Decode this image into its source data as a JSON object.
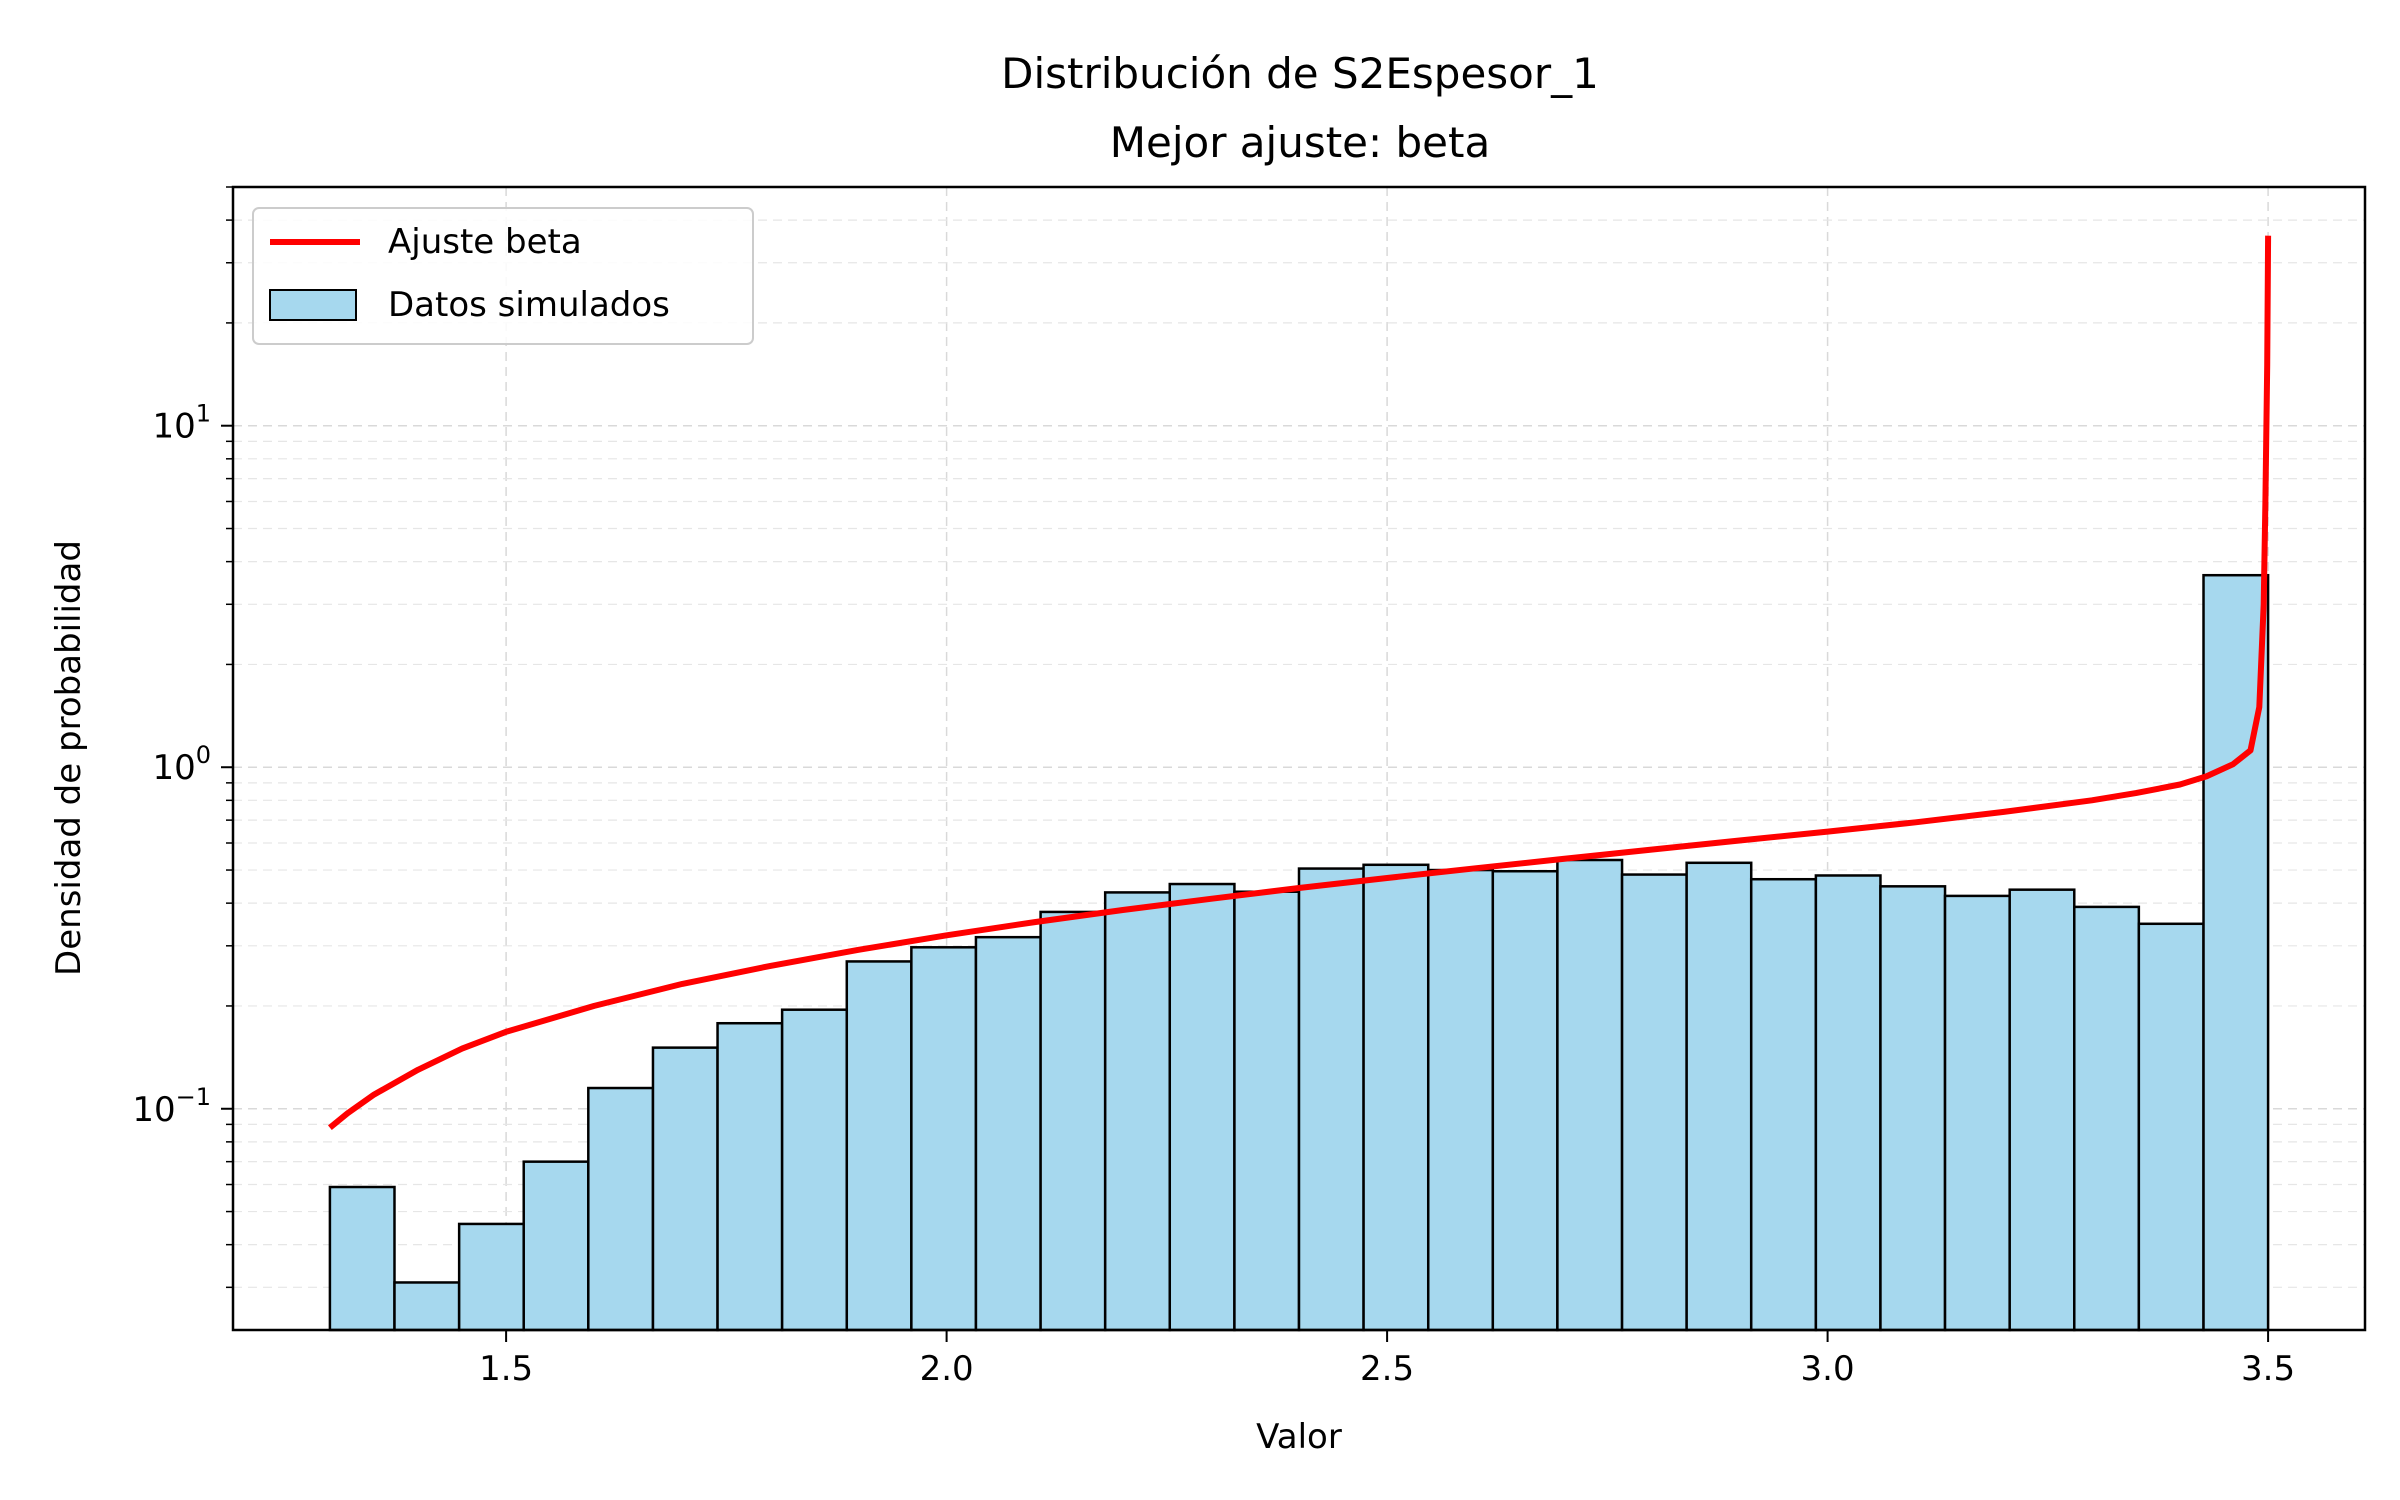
{
  "chart_data": {
    "type": "bar",
    "title": "Distribución de S2Espesor_1",
    "subtitle": "Mejor ajuste: beta",
    "xlabel": "Valor",
    "ylabel": "Densidad de probabilidad",
    "xlim": [
      1.19,
      3.61
    ],
    "ylim": [
      0.0225,
      50
    ],
    "yscale": "log",
    "grid": true,
    "legend_position": "upper-left",
    "x_ticks": [
      1.5,
      2.0,
      2.5,
      3.0,
      3.5
    ],
    "x_tick_labels": [
      "1.5",
      "2.0",
      "2.5",
      "3.0",
      "3.5"
    ],
    "y_ticks": [
      0.1,
      1,
      10
    ],
    "y_tick_labels": [
      {
        "base": "10",
        "exp": "−1"
      },
      {
        "base": "10",
        "exp": "0"
      },
      {
        "base": "10",
        "exp": "1"
      }
    ],
    "histogram": {
      "name": "Datos simulados",
      "color": "#a6d8ee",
      "edge_color": "#000000",
      "bin_edges": [
        1.3,
        1.3733,
        1.4467,
        1.52,
        1.5933,
        1.6667,
        1.74,
        1.8133,
        1.8867,
        1.96,
        2.0333,
        2.1067,
        2.18,
        2.2533,
        2.3267,
        2.4,
        2.4733,
        2.5467,
        2.62,
        2.6933,
        2.7667,
        2.84,
        2.9133,
        2.9867,
        3.06,
        3.1333,
        3.2067,
        3.28,
        3.3533,
        3.4267,
        3.5
      ],
      "values": [
        0.059,
        0.031,
        0.046,
        0.07,
        0.115,
        0.151,
        0.178,
        0.195,
        0.27,
        0.297,
        0.318,
        0.377,
        0.43,
        0.455,
        0.432,
        0.505,
        0.518,
        0.5,
        0.496,
        0.535,
        0.485,
        0.525,
        0.47,
        0.482,
        0.448,
        0.42,
        0.438,
        0.39,
        0.348,
        3.65
      ]
    },
    "fit_line": {
      "name": "Ajuste beta",
      "color": "#ff0000",
      "x": [
        1.3,
        1.32,
        1.35,
        1.4,
        1.45,
        1.5,
        1.6,
        1.7,
        1.8,
        1.9,
        2.0,
        2.1,
        2.2,
        2.3,
        2.4,
        2.5,
        2.6,
        2.7,
        2.8,
        2.9,
        3.0,
        3.1,
        3.2,
        3.3,
        3.35,
        3.4,
        3.43,
        3.46,
        3.48,
        3.49,
        3.495,
        3.497,
        3.499,
        3.5
      ],
      "y": [
        0.088,
        0.097,
        0.11,
        0.13,
        0.15,
        0.168,
        0.2,
        0.232,
        0.262,
        0.292,
        0.322,
        0.352,
        0.382,
        0.412,
        0.443,
        0.474,
        0.506,
        0.539,
        0.574,
        0.61,
        0.648,
        0.69,
        0.74,
        0.8,
        0.84,
        0.89,
        0.94,
        1.02,
        1.12,
        1.5,
        3.0,
        6.0,
        15.0,
        36.0
      ]
    }
  }
}
